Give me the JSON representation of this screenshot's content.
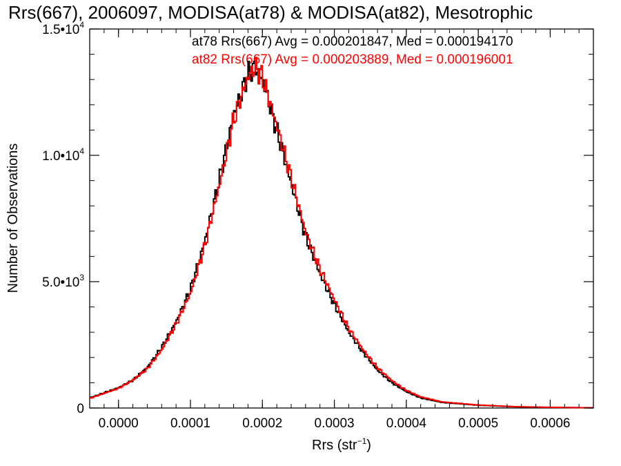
{
  "chart_data": {
    "type": "line",
    "title": "Rrs(667), 2006097, MODISA(at78) & MODISA(at82), Mesotrophic",
    "xlabel_base": "Rrs (str",
    "xlabel_sup": "−1",
    "xlabel_end": ")",
    "ylabel": "Number of Observations",
    "xlim": [
      -4e-05,
      0.00066
    ],
    "ylim": [
      0,
      15000
    ],
    "x_ticks": [
      {
        "value": 0.0,
        "label": "0.0000"
      },
      {
        "value": 0.0001,
        "label": "0.0001"
      },
      {
        "value": 0.0002,
        "label": "0.0002"
      },
      {
        "value": 0.0003,
        "label": "0.0003"
      },
      {
        "value": 0.0004,
        "label": "0.0004"
      },
      {
        "value": 0.0005,
        "label": "0.0005"
      },
      {
        "value": 0.0006,
        "label": "0.0006"
      }
    ],
    "y_ticks": [
      {
        "value": 0,
        "mant": "0",
        "exp": ""
      },
      {
        "value": 5000,
        "mant": "5.0•10",
        "exp": "3"
      },
      {
        "value": 10000,
        "mant": "1.0•10",
        "exp": "4"
      },
      {
        "value": 15000,
        "mant": "1.5•10",
        "exp": "4"
      }
    ],
    "grid": false,
    "legend_position": "top-right",
    "series": [
      {
        "name": "at78",
        "color": "#000000",
        "legend": "at78 Rrs(667) Avg = 0.000201847, Med = 0.000194170",
        "x": [
          -4e-05,
          -2e-05,
          0.0,
          2e-05,
          4e-05,
          6e-05,
          8e-05,
          0.0001,
          0.00012,
          0.00014,
          0.00016,
          0.00018,
          0.00019,
          0.0002,
          0.00022,
          0.00024,
          0.00026,
          0.00028,
          0.0003,
          0.00032,
          0.00034,
          0.00036,
          0.00038,
          0.0004,
          0.00042,
          0.00045,
          0.0005,
          0.00055,
          0.0006,
          0.00066
        ],
        "y": [
          400,
          600,
          800,
          1100,
          1600,
          2400,
          3400,
          4700,
          6600,
          9000,
          11600,
          13200,
          13500,
          13000,
          11000,
          8900,
          6800,
          5300,
          4100,
          3000,
          2200,
          1500,
          1000,
          650,
          400,
          220,
          110,
          50,
          25,
          10
        ]
      },
      {
        "name": "at82",
        "color": "#ff0000",
        "legend": "at82 Rrs(667) Avg = 0.000203889, Med = 0.000196001",
        "x": [
          -4e-05,
          -2e-05,
          0.0,
          2e-05,
          4e-05,
          6e-05,
          8e-05,
          0.0001,
          0.00012,
          0.00014,
          0.00016,
          0.00018,
          0.00019,
          0.0002,
          0.00022,
          0.00024,
          0.00026,
          0.00028,
          0.0003,
          0.00032,
          0.00034,
          0.00036,
          0.00038,
          0.0004,
          0.00042,
          0.00045,
          0.0005,
          0.00055,
          0.0006,
          0.00066
        ],
        "y": [
          380,
          580,
          780,
          1100,
          1550,
          2300,
          3300,
          4550,
          6400,
          8800,
          11400,
          13100,
          13500,
          13100,
          11200,
          9100,
          7000,
          5500,
          4300,
          3150,
          2300,
          1600,
          1080,
          700,
          440,
          240,
          120,
          55,
          28,
          10
        ]
      }
    ]
  }
}
